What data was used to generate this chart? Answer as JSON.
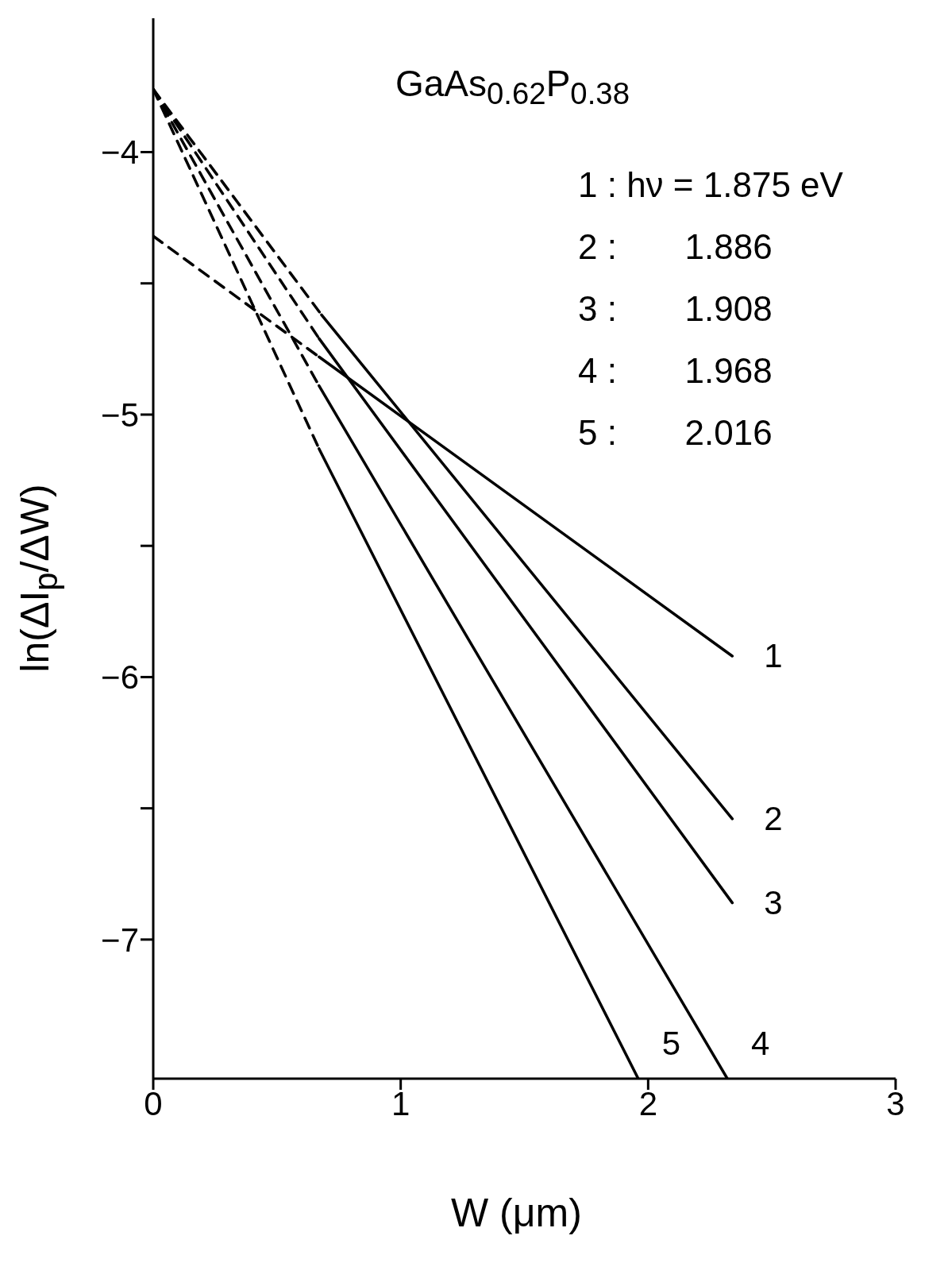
{
  "chart_data": {
    "type": "line",
    "title": "GaAs$_{0.62}$P$_{0.38}$",
    "xlabel": "W (μm)",
    "ylabel": "ln(ΔI$_{p}$/ΔW)",
    "annotations": [
      "1 : hν = 1.875 eV",
      "2 :       1.886",
      "3 :       1.908",
      "4 :       1.968",
      "5 :       2.016"
    ],
    "xlim": [
      0,
      3
    ],
    "xticks": [
      0,
      1,
      2,
      3
    ],
    "ylim": [
      -7.53,
      -3.49
    ],
    "yticks": [
      -4,
      {
        "value": -4.5,
        "label": null
      },
      -5,
      {
        "value": -5.5,
        "label": null
      },
      -6,
      {
        "value": -6.5,
        "label": null
      },
      -7
    ],
    "grid": false,
    "legend": false,
    "marker": "none",
    "line_style": "solid",
    "series": [
      {
        "name": "1",
        "color": "#000000",
        "x": [
          0.67,
          2.34
        ],
        "values": [
          -4.78,
          -5.92
        ]
      },
      {
        "name": "2",
        "color": "#000000",
        "x": [
          0.68,
          2.34
        ],
        "values": [
          -4.62,
          -6.54
        ]
      },
      {
        "name": "3",
        "color": "#000000",
        "x": [
          0.67,
          2.34
        ],
        "values": [
          -4.71,
          -6.86
        ]
      },
      {
        "name": "4",
        "color": "#000000",
        "x": [
          0.67,
          2.32
        ],
        "values": [
          -4.89,
          -7.53
        ]
      },
      {
        "name": "5",
        "color": "#000000",
        "x": [
          0.67,
          1.96
        ],
        "values": [
          -5.13,
          -7.53
        ]
      },
      {
        "color": "#000000",
        "line_style": "dashed",
        "x": [
          0,
          0.67
        ],
        "values": [
          -4.32,
          -4.78
        ]
      },
      {
        "color": "#000000",
        "line_style": "dashed",
        "x": [
          0,
          0.68
        ],
        "values": [
          -3.76,
          -4.62
        ]
      },
      {
        "color": "#000000",
        "line_style": "dashed",
        "x": [
          0,
          0.67
        ],
        "values": [
          -3.76,
          -4.71
        ]
      },
      {
        "color": "#000000",
        "line_style": "dashed",
        "x": [
          0,
          0.67
        ],
        "values": [
          -3.76,
          -4.89
        ]
      },
      {
        "color": "#000000",
        "line_style": "dashed",
        "x": [
          0,
          0.67
        ],
        "values": [
          -3.76,
          -5.13
        ]
      }
    ]
  }
}
